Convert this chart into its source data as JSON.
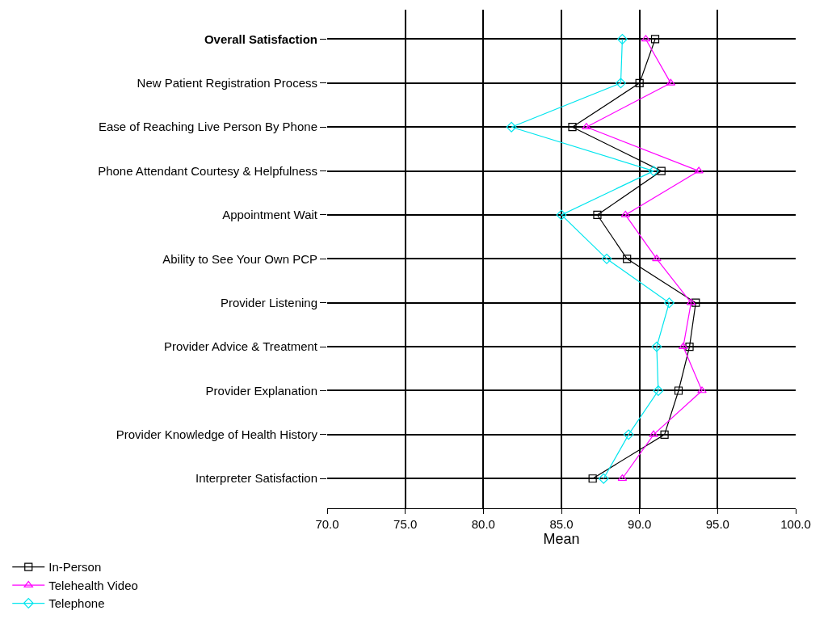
{
  "chart_data": {
    "type": "line",
    "orientation": "horizontal",
    "xlabel": "Mean",
    "categories": [
      "Overall Satisfaction",
      "New Patient Registration Process",
      "Ease of Reaching Live Person By Phone",
      "Phone Attendant Courtesy & Helpfulness",
      "Appointment Wait",
      "Ability to See Your Own PCP",
      "Provider Listening",
      "Provider Advice & Treatment",
      "Provider Explanation",
      "Provider Knowledge of Health History",
      "Interpreter Satisfaction"
    ],
    "series": [
      {
        "name": "In-Person",
        "color": "#000000",
        "marker": "square",
        "values": [
          91.0,
          90.0,
          85.7,
          91.4,
          87.3,
          89.2,
          93.6,
          93.2,
          92.5,
          91.6,
          87.0
        ]
      },
      {
        "name": "Telehealth Video",
        "color": "#ff00ff",
        "marker": "triangle",
        "values": [
          90.4,
          92.0,
          86.6,
          93.8,
          89.1,
          91.1,
          93.3,
          92.8,
          94.0,
          90.9,
          88.9
        ]
      },
      {
        "name": "Telephone",
        "color": "#00e5ee",
        "marker": "diamond",
        "values": [
          88.9,
          88.8,
          81.8,
          90.9,
          85.0,
          87.9,
          91.9,
          91.1,
          91.2,
          89.3,
          87.7
        ]
      }
    ],
    "xlim": [
      70,
      100
    ],
    "xticks": [
      {
        "value": 70,
        "label": "70.0"
      },
      {
        "value": 75,
        "label": "75.0"
      },
      {
        "value": 80,
        "label": "80.0"
      },
      {
        "value": 85,
        "label": "85.0"
      },
      {
        "value": 90,
        "label": "90.0"
      },
      {
        "value": 95,
        "label": "95.0"
      },
      {
        "value": 100,
        "label": "100.0"
      }
    ],
    "grid": true,
    "legend": "bottom left",
    "line_style": "solid"
  }
}
